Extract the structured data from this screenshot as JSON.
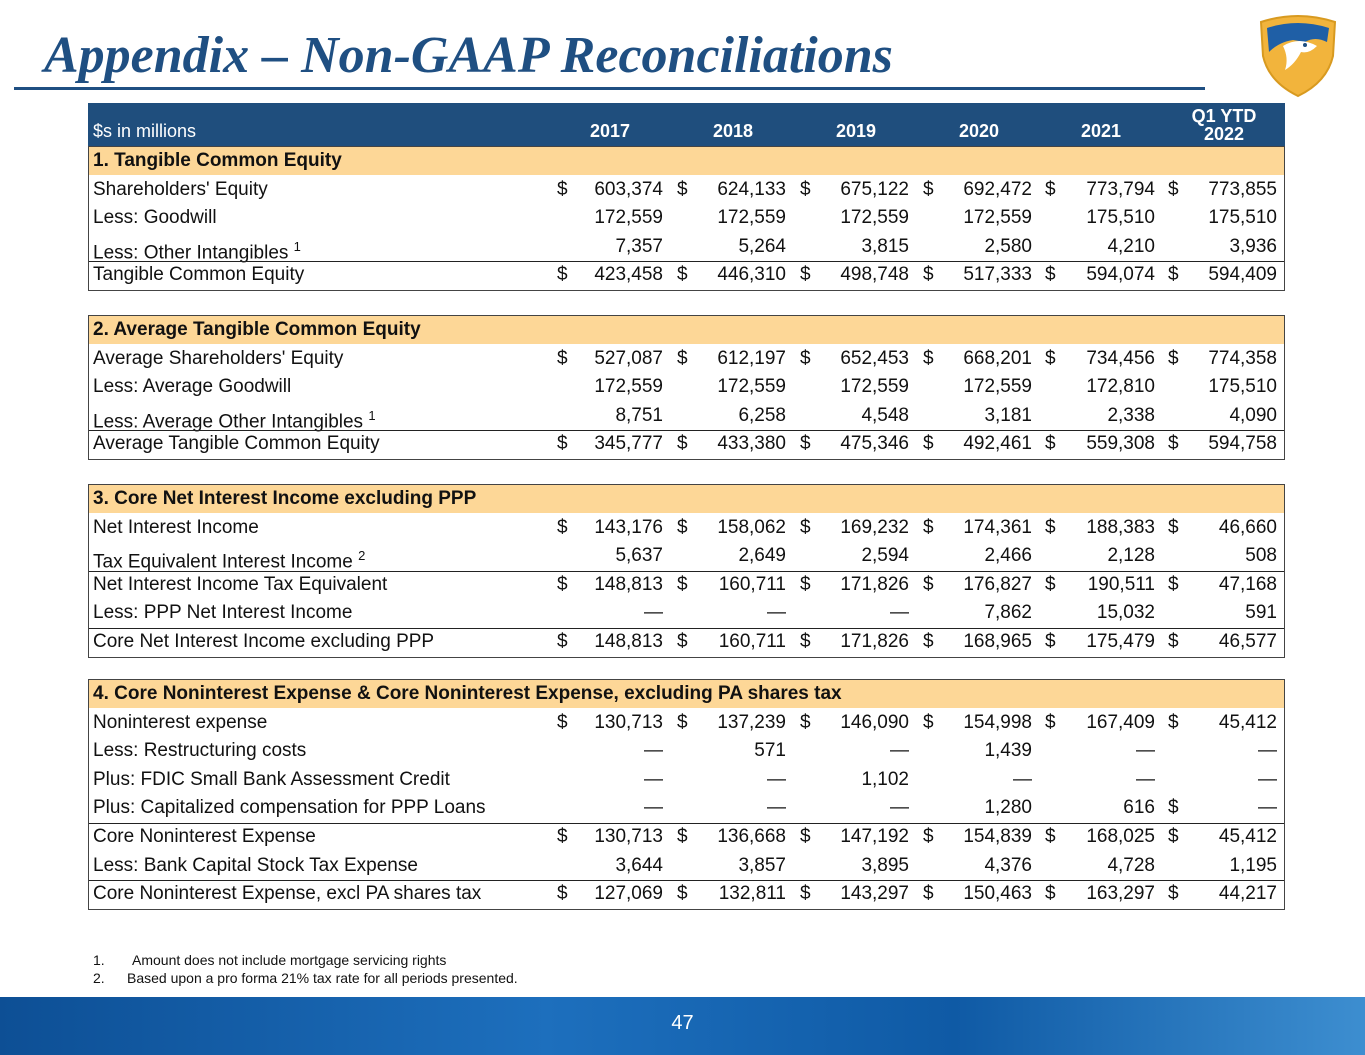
{
  "header": {
    "title": "Appendix – Non-GAAP Reconciliations"
  },
  "table": {
    "units": "$s in millions",
    "currency": "$",
    "columns": [
      "2017",
      "2018",
      "2019",
      "2020",
      "2021",
      "Q1 YTD 2022"
    ],
    "sections": [
      {
        "title": "1. Tangible Common Equity",
        "rows": [
          {
            "label": "Shareholders' Equity",
            "dollars": [
              true,
              true,
              true,
              true,
              true,
              true
            ],
            "values": [
              "603,374",
              "624,133",
              "675,122",
              "692,472",
              "773,794",
              "773,855"
            ]
          },
          {
            "label": "Less: Goodwill",
            "values": [
              "172,559",
              "172,559",
              "172,559",
              "172,559",
              "175,510",
              "175,510"
            ]
          },
          {
            "label": "Less: Other Intangibles",
            "note": "1",
            "values": [
              "7,357",
              "5,264",
              "3,815",
              "2,580",
              "4,210",
              "3,936"
            ]
          },
          {
            "label": "Tangible Common Equity",
            "total": true,
            "dollars": [
              true,
              true,
              true,
              true,
              true,
              true
            ],
            "values": [
              "423,458",
              "446,310",
              "498,748",
              "517,333",
              "594,074",
              "594,409"
            ]
          }
        ]
      },
      {
        "title": "2. Average Tangible Common Equity",
        "rows": [
          {
            "label": "Average Shareholders' Equity",
            "dollars": [
              true,
              true,
              true,
              true,
              true,
              true
            ],
            "values": [
              "527,087",
              "612,197",
              "652,453",
              "668,201",
              "734,456",
              "774,358"
            ]
          },
          {
            "label": "Less: Average Goodwill",
            "values": [
              "172,559",
              "172,559",
              "172,559",
              "172,559",
              "172,810",
              "175,510"
            ]
          },
          {
            "label": "Less: Average Other Intangibles",
            "note": "1",
            "values": [
              "8,751",
              "6,258",
              "4,548",
              "3,181",
              "2,338",
              "4,090"
            ]
          },
          {
            "label": "Average Tangible Common Equity",
            "total": true,
            "dollars": [
              true,
              true,
              true,
              true,
              true,
              true
            ],
            "values": [
              "345,777",
              "433,380",
              "475,346",
              "492,461",
              "559,308",
              "594,758"
            ]
          }
        ]
      },
      {
        "title": "3. Core Net Interest Income excluding PPP",
        "rows": [
          {
            "label": "Net Interest Income",
            "dollars": [
              true,
              true,
              true,
              true,
              true,
              true
            ],
            "values": [
              "143,176",
              "158,062",
              "169,232",
              "174,361",
              "188,383",
              "46,660"
            ]
          },
          {
            "label": "Tax Equivalent Interest Income",
            "note": "2",
            "values": [
              "5,637",
              "2,649",
              "2,594",
              "2,466",
              "2,128",
              "508"
            ]
          },
          {
            "label": "Net Interest Income Tax Equivalent",
            "total": true,
            "dollars": [
              true,
              true,
              true,
              true,
              true,
              true
            ],
            "values": [
              "148,813",
              "160,711",
              "171,826",
              "176,827",
              "190,511",
              "47,168"
            ]
          },
          {
            "label": "Less: PPP Net Interest Income",
            "values": [
              "—",
              "—",
              "—",
              "7,862",
              "15,032",
              "591"
            ]
          },
          {
            "label": "Core Net Interest Income excluding PPP",
            "total": true,
            "dollars": [
              true,
              true,
              true,
              true,
              true,
              true
            ],
            "values": [
              "148,813",
              "160,711",
              "171,826",
              "168,965",
              "175,479",
              "46,577"
            ]
          }
        ]
      },
      {
        "title": "4. Core Noninterest Expense & Core Noninterest Expense, excluding PA shares tax",
        "rows": [
          {
            "label": "Noninterest expense",
            "dollars": [
              true,
              true,
              true,
              true,
              true,
              true
            ],
            "values": [
              "130,713",
              "137,239",
              "146,090",
              "154,998",
              "167,409",
              "45,412"
            ]
          },
          {
            "label": "Less: Restructuring costs",
            "values": [
              "—",
              "571",
              "—",
              "1,439",
              "—",
              "—"
            ]
          },
          {
            "label": "Plus: FDIC Small Bank Assessment Credit",
            "values": [
              "—",
              "—",
              "1,102",
              "—",
              "—",
              "—"
            ]
          },
          {
            "label": "Plus: Capitalized compensation for PPP Loans",
            "dollars": [
              false,
              false,
              false,
              false,
              false,
              true
            ],
            "values": [
              "—",
              "—",
              "—",
              "1,280",
              "616",
              "—"
            ]
          },
          {
            "label": "Core Noninterest Expense",
            "total": true,
            "dollars": [
              true,
              true,
              true,
              true,
              true,
              true
            ],
            "values": [
              "130,713",
              "136,668",
              "147,192",
              "154,839",
              "168,025",
              "45,412"
            ]
          },
          {
            "label": "Less: Bank Capital Stock Tax Expense",
            "values": [
              "3,644",
              "3,857",
              "3,895",
              "4,376",
              "4,728",
              "1,195"
            ]
          },
          {
            "label": "Core Noninterest Expense, excl PA shares tax",
            "total": true,
            "dollars": [
              true,
              true,
              true,
              true,
              true,
              true
            ],
            "values": [
              "127,069",
              "132,811",
              "143,297",
              "150,463",
              "163,297",
              "44,217"
            ]
          }
        ]
      }
    ]
  },
  "footnotes": [
    {
      "number": "1.",
      "text": "Amount does not include mortgage servicing rights"
    },
    {
      "number": "2.",
      "text": "Based upon a pro forma 21% tax rate for all periods presented."
    }
  ],
  "page_number": "47"
}
